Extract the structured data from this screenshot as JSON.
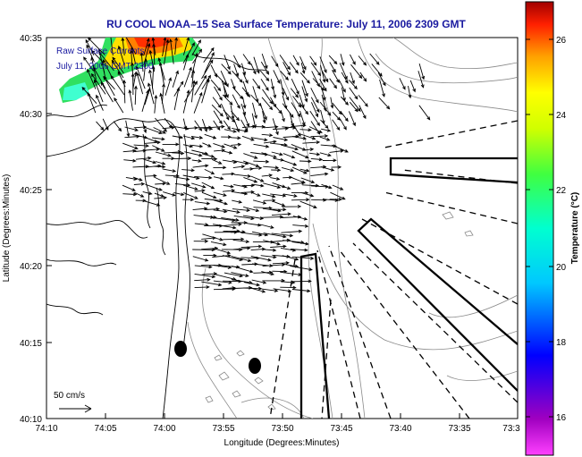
{
  "title": "RU COOL  NOAA–15  Sea Surface Temperature:  July 11, 2006 2309 GMT",
  "inset_label_1": "Raw Surface Currents",
  "inset_label_2": "July 11, 2006 GMT 2300",
  "scale_label": "50 cm/s",
  "xlabel": "Longitude (Degrees:Minutes)",
  "ylabel": "Latitude (Degrees:Minutes)",
  "x_ticks": [
    "74:10",
    "74:05",
    "74:00",
    "73:55",
    "73:50",
    "73:45",
    "73:40",
    "73:35",
    "73:3"
  ],
  "y_ticks": [
    "40:35",
    "40:30",
    "40:25",
    "40:20",
    "40:15",
    "40:10"
  ],
  "colorbar": {
    "label": "Temperature (°C)",
    "ticks": [
      "26",
      "24",
      "22",
      "20",
      "18",
      "16"
    ]
  },
  "colors": {
    "title": "#1a1aa0",
    "coast": "#000000",
    "bathymetry": "#888888",
    "arrows": "#000000"
  }
}
